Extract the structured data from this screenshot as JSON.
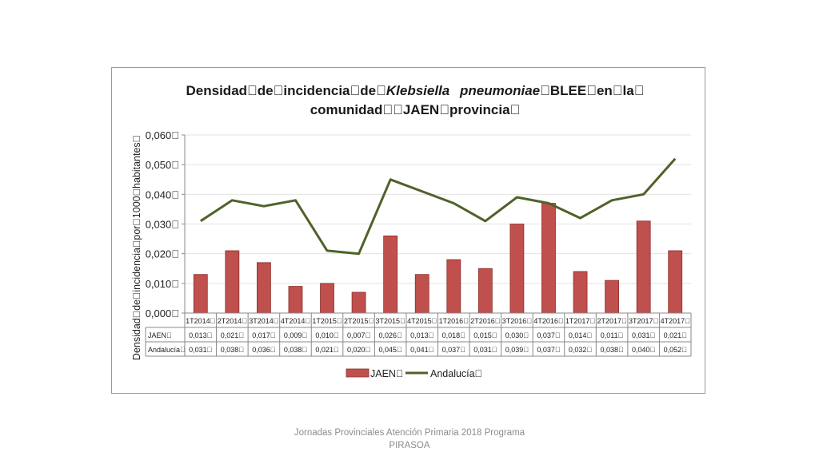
{
  "footer": {
    "text": "Jornadas Provinciales Atención Primaria 2018  Programa PIRASOA"
  },
  "chart_data": {
    "type": "bar+line",
    "title_line1_prefix": "Densidad\u0000de\u0000incidencia\u0000de\u0000",
    "title_line1_italic": "Klebsiella\u0000pneumoniae",
    "title_line1_suffix": "\u0000BLEE\u0000en\u0000la\u0000",
    "title_line2": "comunidad\u0000\u0000JAEN\u0000provincia\u0000",
    "ylabel": "Densidad\u0000de\u0000incidencia\u0000por\u00001000\u0000habitantes\u0000",
    "ylim": [
      0,
      0.06
    ],
    "yticks": [
      "0,000\u0000",
      "0,010\u0000",
      "0,020\u0000",
      "0,030\u0000",
      "0,040\u0000",
      "0,050\u0000",
      "0,060\u0000"
    ],
    "categories": [
      "1T2014\u0000",
      "2T2014\u0000",
      "3T2014\u0000",
      "4T2014\u0000",
      "1T2015\u0000",
      "2T2015\u0000",
      "3T2015\u0000",
      "4T2015\u0000",
      "1T2016\u0000",
      "2T2016\u0000",
      "3T2016\u0000",
      "4T2016\u0000",
      "1T2017\u0000",
      "2T2017\u0000",
      "3T2017\u0000",
      "4T2017\u0000"
    ],
    "series": [
      {
        "name": "JAEN\u0000",
        "kind": "bar",
        "color": "#c0504d",
        "values": [
          0.013,
          0.021,
          0.017,
          0.009,
          0.01,
          0.007,
          0.026,
          0.013,
          0.018,
          0.015,
          0.03,
          0.037,
          0.014,
          0.011,
          0.031,
          0.021
        ],
        "labels": [
          "0,013\u0000",
          "0,021\u0000",
          "0,017\u0000",
          "0,009\u0000",
          "0,010\u0000",
          "0,007\u0000",
          "0,026\u0000",
          "0,013\u0000",
          "0,018\u0000",
          "0,015\u0000",
          "0,030\u0000",
          "0,037\u0000",
          "0,014\u0000",
          "0,011\u0000",
          "0,031\u0000",
          "0,021\u0000"
        ]
      },
      {
        "name": "Andalucía\u0000",
        "kind": "line",
        "color": "#4f6228",
        "values": [
          0.031,
          0.038,
          0.036,
          0.038,
          0.021,
          0.02,
          0.045,
          0.041,
          0.037,
          0.031,
          0.039,
          0.037,
          0.032,
          0.038,
          0.04,
          0.052
        ],
        "labels": [
          "0,031\u0000",
          "0,038\u0000",
          "0,036\u0000",
          "0,038\u0000",
          "0,021\u0000",
          "0,020\u0000",
          "0,045\u0000",
          "0,041\u0000",
          "0,037\u0000",
          "0,031\u0000",
          "0,039\u0000",
          "0,037\u0000",
          "0,032\u0000",
          "0,038\u0000",
          "0,040\u0000",
          "0,052\u0000"
        ]
      }
    ],
    "grid": true,
    "legend": "bottom",
    "data_table": true
  }
}
